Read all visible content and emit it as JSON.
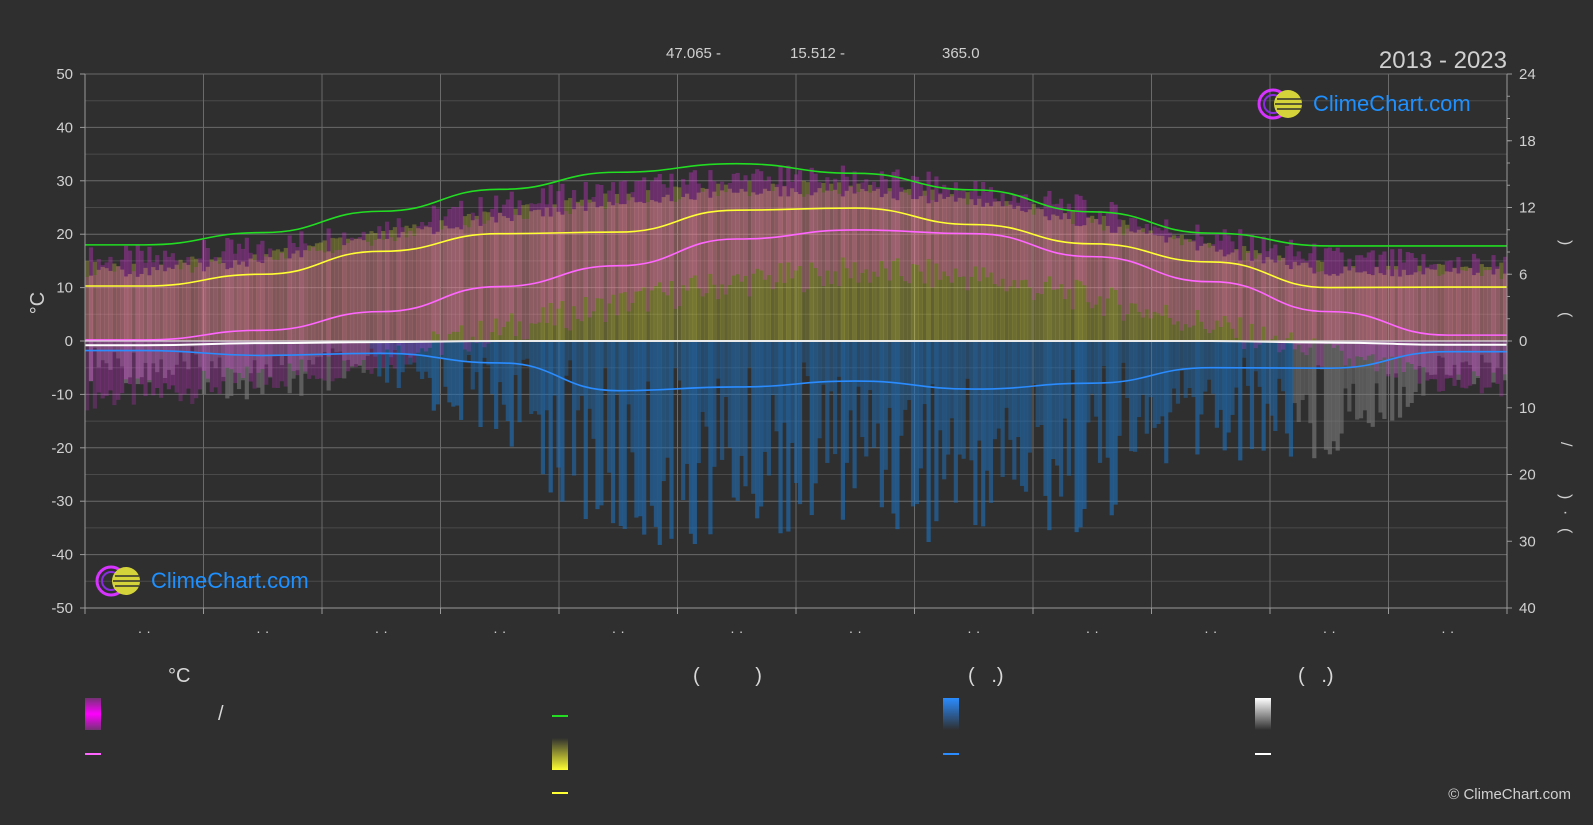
{
  "header": {
    "coords": [
      "47.065 -",
      "15.512 -",
      "365.0"
    ],
    "period": "2013 - 2023"
  },
  "logo": {
    "text": "ClimeChart.com"
  },
  "copyright": "© ClimeChart.com",
  "chart_data": {
    "type": "line",
    "left_axis": {
      "label": "°C",
      "ylim": [
        -50,
        50
      ],
      "ticks": [
        50,
        40,
        30,
        20,
        10,
        0,
        -10,
        -20,
        -30,
        -40,
        -50
      ]
    },
    "right_axis_top": {
      "ticks": [
        24,
        18,
        12,
        6,
        0
      ],
      "symbols": [
        "(",
        ")"
      ]
    },
    "right_axis_bottom": {
      "ticks": [
        10,
        20,
        30,
        40
      ],
      "symbols": [
        "/",
        "(",
        "·",
        ")"
      ]
    },
    "x_tick_labels": [
      "· ·",
      "· ·",
      "· ·",
      "· ·",
      "· ·",
      "· ·",
      "· ·",
      "· ·",
      "· ·",
      "· ·",
      "· ·",
      "· ·"
    ],
    "months": 12,
    "series": [
      {
        "key": "daylight",
        "color": "#22dd22",
        "values": [
          18.0,
          20.3,
          24.3,
          28.4,
          31.6,
          33.2,
          31.4,
          28.3,
          24.2,
          20.2,
          17.8,
          17.8
        ]
      },
      {
        "key": "sunshine",
        "color": "#ffff33",
        "values": [
          10.3,
          12.5,
          16.8,
          20.1,
          20.4,
          24.5,
          24.9,
          21.8,
          18.2,
          14.8,
          10.0,
          10.1
        ]
      },
      {
        "key": "temp_mean",
        "color": "#ff66ff",
        "values": [
          0.2,
          2.0,
          5.5,
          10.2,
          14.1,
          19.1,
          20.8,
          20.1,
          15.8,
          11.1,
          5.5,
          1.1
        ]
      },
      {
        "key": "precip",
        "color": "#2a8cff",
        "values": [
          -1.8,
          -2.7,
          -2.3,
          -4.1,
          -9.3,
          -8.6,
          -7.5,
          -9.0,
          -7.9,
          -5.0,
          -5.1,
          -2.0
        ]
      },
      {
        "key": "snow",
        "color": "#ffffff",
        "values": [
          -0.8,
          -0.4,
          -0.2,
          0,
          0,
          0,
          0,
          0,
          0,
          0,
          -0.3,
          -0.7
        ]
      }
    ],
    "temp_band_top": [
      15,
      17,
      21,
      25,
      28,
      30,
      30,
      28,
      24,
      19,
      15,
      14
    ],
    "temp_band_bottom": [
      -10,
      -7,
      -3,
      2,
      7,
      11,
      13,
      12,
      8,
      3,
      -3,
      -8
    ],
    "sun_band_top": [
      15,
      17,
      21,
      25,
      28,
      30,
      30,
      28,
      24,
      19,
      15,
      15
    ],
    "sun_band_bottom": [
      0,
      0,
      0,
      0,
      0,
      0,
      0,
      0,
      0,
      0,
      0,
      0
    ]
  },
  "legend": {
    "col1": {
      "title": "°C",
      "text1": "/"
    },
    "col2": {
      "title": "(          )"
    },
    "col3": {
      "title": "(   .)"
    },
    "col4": {
      "title": "(   .)"
    }
  },
  "colors": {
    "background": "#2f2f2f",
    "temp_band": "#ff33ff",
    "sun_band": "#d4d43a",
    "precip_bars": "#1f6fb8",
    "snow_bars": "#7a7a7a",
    "logo_text": "#1e90ff"
  }
}
